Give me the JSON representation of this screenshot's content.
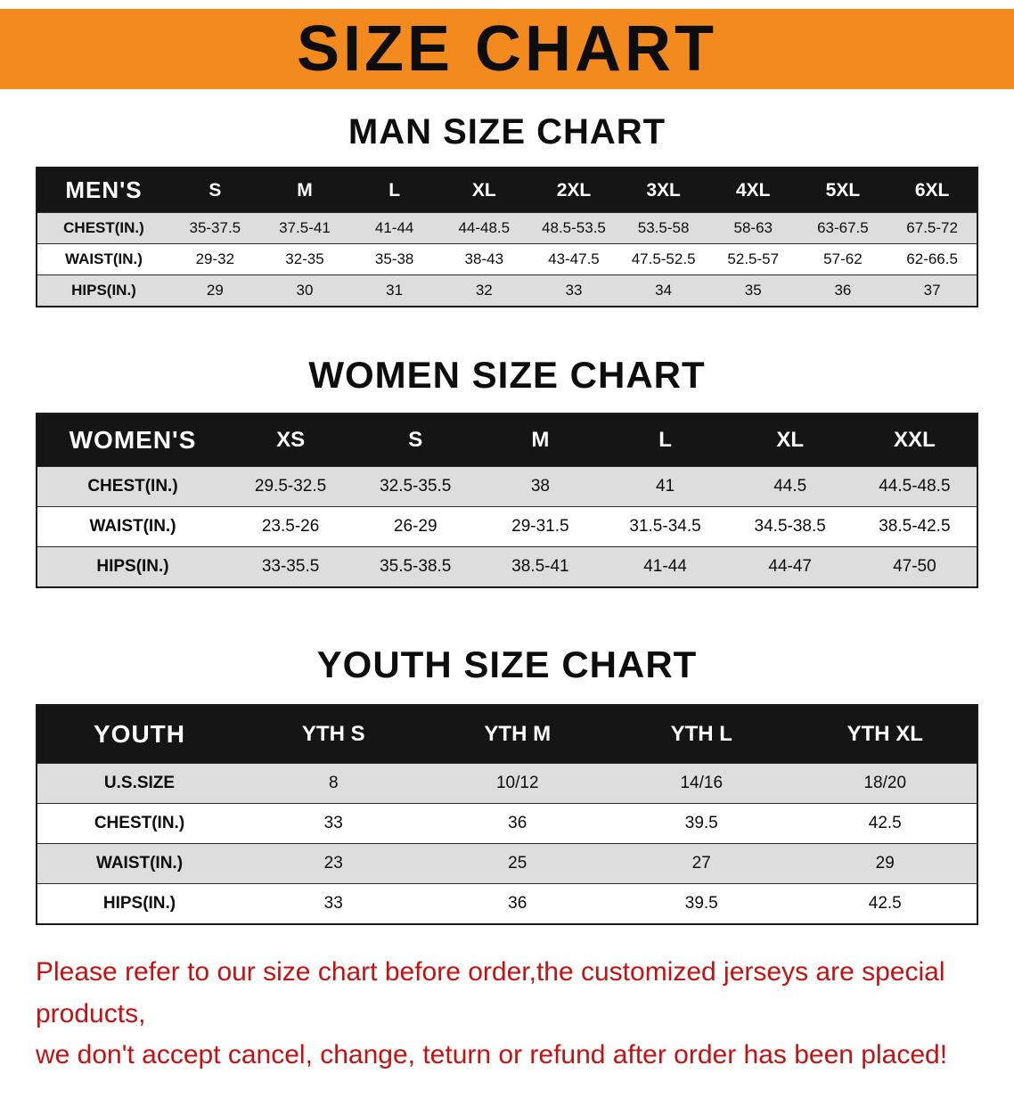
{
  "banner": {
    "title": "SIZE CHART"
  },
  "colors": {
    "banner_bg": "#F38A1E",
    "header_bg": "#151515",
    "row_alt": "#DDDDDD",
    "note_red": "#C41212"
  },
  "sections": [
    {
      "heading": "MAN SIZE CHART",
      "label": "MEN'S",
      "columns": [
        "S",
        "M",
        "L",
        "XL",
        "2XL",
        "3XL",
        "4XL",
        "5XL",
        "6XL"
      ],
      "rows": [
        {
          "label": "CHEST(IN.)",
          "values": [
            "35-37.5",
            "37.5-41",
            "41-44",
            "44-48.5",
            "48.5-53.5",
            "53.5-58",
            "58-63",
            "63-67.5",
            "67.5-72"
          ]
        },
        {
          "label": "WAIST(IN.)",
          "values": [
            "29-32",
            "32-35",
            "35-38",
            "38-43",
            "43-47.5",
            "47.5-52.5",
            "52.5-57",
            "57-62",
            "62-66.5"
          ]
        },
        {
          "label": "HIPS(IN.)",
          "values": [
            "29",
            "30",
            "31",
            "32",
            "33",
            "34",
            "35",
            "36",
            "37"
          ]
        }
      ]
    },
    {
      "heading": "WOMEN SIZE CHART",
      "label": "WOMEN'S",
      "columns": [
        "XS",
        "S",
        "M",
        "L",
        "XL",
        "XXL"
      ],
      "rows": [
        {
          "label": "CHEST(IN.)",
          "values": [
            "29.5-32.5",
            "32.5-35.5",
            "38",
            "41",
            "44.5",
            "44.5-48.5"
          ]
        },
        {
          "label": "WAIST(IN.)",
          "values": [
            "23.5-26",
            "26-29",
            "29-31.5",
            "31.5-34.5",
            "34.5-38.5",
            "38.5-42.5"
          ]
        },
        {
          "label": "HIPS(IN.)",
          "values": [
            "33-35.5",
            "35.5-38.5",
            "38.5-41",
            "41-44",
            "44-47",
            "47-50"
          ]
        }
      ]
    },
    {
      "heading": "YOUTH SIZE CHART",
      "label": "YOUTH",
      "columns": [
        "YTH S",
        "YTH M",
        "YTH L",
        "YTH XL"
      ],
      "rows": [
        {
          "label": "U.S.SIZE",
          "values": [
            "8",
            "10/12",
            "14/16",
            "18/20"
          ]
        },
        {
          "label": "CHEST(IN.)",
          "values": [
            "33",
            "36",
            "39.5",
            "42.5"
          ]
        },
        {
          "label": "WAIST(IN.)",
          "values": [
            "23",
            "25",
            "27",
            "29"
          ]
        },
        {
          "label": "HIPS(IN.)",
          "values": [
            "33",
            "36",
            "39.5",
            "42.5"
          ]
        }
      ]
    }
  ],
  "note": {
    "line1": "Please refer to our size chart before order,the customized jerseys are special products,",
    "line2": "we don't accept cancel, change, teturn or refund after order has been placed!"
  }
}
